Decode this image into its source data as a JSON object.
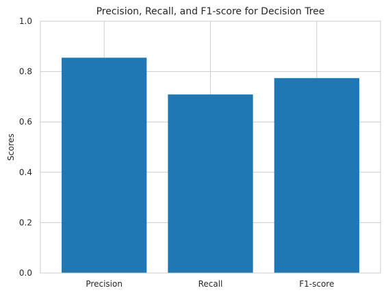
{
  "chart_data": {
    "type": "bar",
    "title": "Precision, Recall, and F1-score for Decision Tree",
    "xlabel": "",
    "ylabel": "Scores",
    "categories": [
      "Precision",
      "Recall",
      "F1-score"
    ],
    "values": [
      0.855,
      0.709,
      0.774
    ],
    "ylim": [
      0,
      1.0
    ],
    "yticks": [
      0.0,
      0.2,
      0.4,
      0.6,
      0.8,
      1.0
    ],
    "ytick_labels": [
      "0.0",
      "0.2",
      "0.4",
      "0.6",
      "0.8",
      "1.0"
    ],
    "grid": true,
    "legend": "none",
    "colors": {
      "bar": "#1f77b4",
      "grid": "#cccccc",
      "spine": "#cccccc",
      "text": "#262626",
      "background": "#ffffff"
    }
  }
}
